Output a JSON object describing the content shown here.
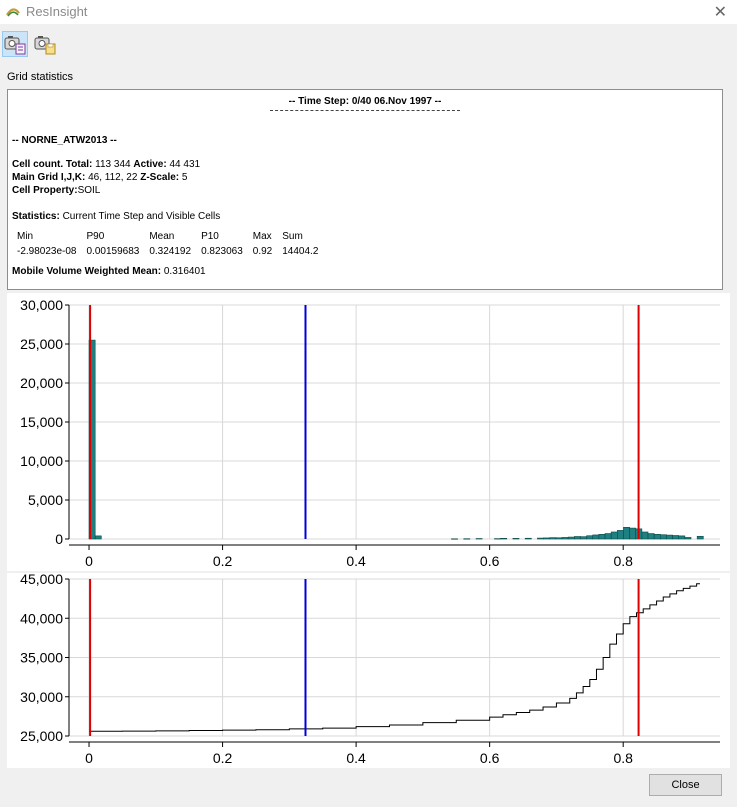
{
  "window": {
    "title": "ResInsight"
  },
  "toolbar": {
    "buttons": [
      "snapshot-to-clipboard-icon",
      "snapshot-to-file-icon"
    ]
  },
  "section_label": "Grid statistics",
  "stats": {
    "time_step": "-- Time Step: 0/40 06.Nov 1997 --",
    "case_name": "-- NORNE_ATW2013 --",
    "cell_count_label": "Cell count. Total:",
    "cell_count_total": "113 344",
    "active_label": "Active:",
    "active_value": "44 431",
    "main_grid_label": "Main Grid I,J,K:",
    "main_grid_value": "46, 112, 22",
    "zscale_label": "Z-Scale:",
    "zscale_value": "5",
    "cell_property_label": "Cell Property:",
    "cell_property_value": "SOIL",
    "statistics_label": "Statistics:",
    "statistics_value": "Current Time Step and Visible Cells",
    "table": {
      "headers": [
        "Min",
        "P90",
        "Mean",
        "P10",
        "Max",
        "Sum"
      ],
      "values": [
        "-2.98023e-08",
        "0.00159683",
        "0.324192",
        "0.823063",
        "0.92",
        "14404.2"
      ]
    },
    "mobile_label": "Mobile Volume Weighted Mean:",
    "mobile_value": "0.316401"
  },
  "chart_data": [
    {
      "type": "bar",
      "title": "",
      "xlim": [
        -0.03,
        0.945
      ],
      "ylim": [
        0,
        30000
      ],
      "x_ticks": [
        "0",
        "0.2",
        "0.4",
        "0.6",
        "0.8"
      ],
      "y_ticks": [
        "30,000",
        "25,000",
        "20,000",
        "15,000",
        "10,000",
        "5,000",
        "0"
      ],
      "bar_width": 0.0092,
      "bar_color": "#1e8080",
      "bars": [
        {
          "x": 0.0,
          "y": 25500
        },
        {
          "x": 0.0092,
          "y": 400
        },
        {
          "x": 0.5428,
          "y": 30
        },
        {
          "x": 0.5612,
          "y": 40
        },
        {
          "x": 0.5796,
          "y": 60
        },
        {
          "x": 0.6072,
          "y": 50
        },
        {
          "x": 0.6164,
          "y": 90
        },
        {
          "x": 0.6348,
          "y": 80
        },
        {
          "x": 0.6532,
          "y": 100
        },
        {
          "x": 0.6716,
          "y": 120
        },
        {
          "x": 0.6808,
          "y": 140
        },
        {
          "x": 0.69,
          "y": 180
        },
        {
          "x": 0.6992,
          "y": 160
        },
        {
          "x": 0.7084,
          "y": 200
        },
        {
          "x": 0.7176,
          "y": 250
        },
        {
          "x": 0.7268,
          "y": 320
        },
        {
          "x": 0.736,
          "y": 300
        },
        {
          "x": 0.7452,
          "y": 420
        },
        {
          "x": 0.7544,
          "y": 520
        },
        {
          "x": 0.7636,
          "y": 600
        },
        {
          "x": 0.7728,
          "y": 700
        },
        {
          "x": 0.782,
          "y": 900
        },
        {
          "x": 0.7912,
          "y": 1100
        },
        {
          "x": 0.8004,
          "y": 1500
        },
        {
          "x": 0.8096,
          "y": 1400
        },
        {
          "x": 0.8188,
          "y": 1300
        },
        {
          "x": 0.828,
          "y": 900
        },
        {
          "x": 0.8372,
          "y": 700
        },
        {
          "x": 0.8464,
          "y": 600
        },
        {
          "x": 0.8556,
          "y": 550
        },
        {
          "x": 0.8648,
          "y": 500
        },
        {
          "x": 0.874,
          "y": 450
        },
        {
          "x": 0.8832,
          "y": 400
        },
        {
          "x": 0.8924,
          "y": 200
        },
        {
          "x": 0.9108,
          "y": 350
        }
      ],
      "markers": [
        {
          "name": "P90",
          "x": 0.00159683,
          "color": "#dd0000"
        },
        {
          "name": "Mean",
          "x": 0.324192,
          "color": "#0000dd"
        },
        {
          "name": "P10",
          "x": 0.823063,
          "color": "#dd0000"
        }
      ],
      "grid": true
    },
    {
      "type": "line",
      "title": "",
      "step": true,
      "xlim": [
        -0.03,
        0.945
      ],
      "ylim": [
        25000,
        45000
      ],
      "x_ticks": [
        "0",
        "0.2",
        "0.4",
        "0.6",
        "0.8"
      ],
      "y_ticks": [
        "45,000",
        "40,000",
        "35,000",
        "30,000",
        "25,000"
      ],
      "x": [
        0.0,
        0.05,
        0.1,
        0.15,
        0.2,
        0.25,
        0.3,
        0.35,
        0.4,
        0.45,
        0.5,
        0.55,
        0.6,
        0.62,
        0.64,
        0.66,
        0.68,
        0.7,
        0.72,
        0.73,
        0.74,
        0.75,
        0.76,
        0.77,
        0.78,
        0.79,
        0.8,
        0.81,
        0.82,
        0.83,
        0.84,
        0.85,
        0.86,
        0.87,
        0.88,
        0.89,
        0.9,
        0.91
      ],
      "y": [
        25600,
        25620,
        25650,
        25700,
        25750,
        25800,
        25900,
        26000,
        26200,
        26400,
        26700,
        27000,
        27400,
        27700,
        28000,
        28300,
        28700,
        29200,
        29800,
        30500,
        31300,
        32200,
        33500,
        35000,
        36700,
        38000,
        39300,
        40200,
        40700,
        41200,
        41700,
        42200,
        42700,
        43100,
        43500,
        43800,
        44100,
        44400
      ],
      "markers": [
        {
          "name": "P90",
          "x": 0.00159683,
          "color": "#dd0000"
        },
        {
          "name": "Mean",
          "x": 0.324192,
          "color": "#0000dd"
        },
        {
          "name": "P10",
          "x": 0.823063,
          "color": "#dd0000"
        }
      ],
      "grid": true
    }
  ],
  "buttons": {
    "close": "Close"
  }
}
